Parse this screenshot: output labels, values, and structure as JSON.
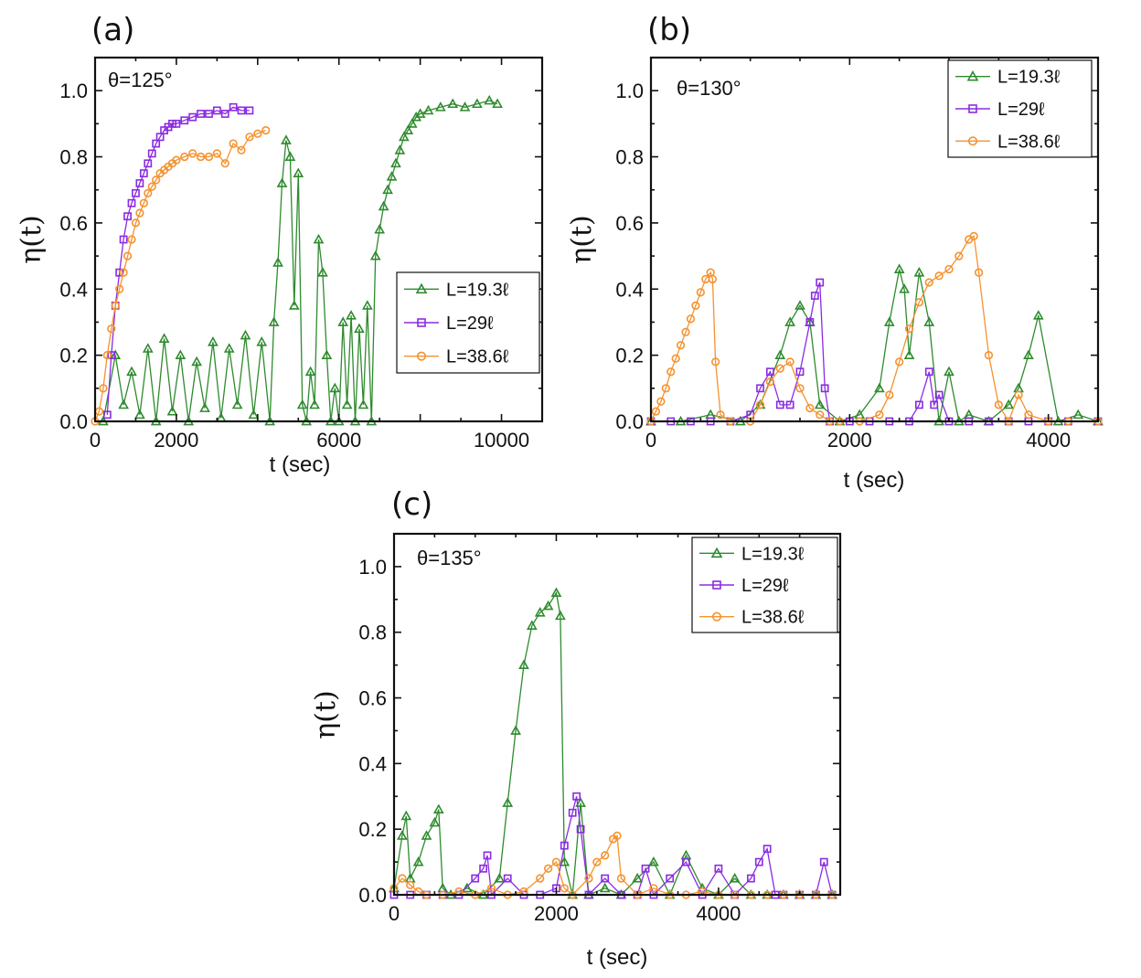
{
  "colors": {
    "green": "#2e8b2e",
    "purple": "#8a2be2",
    "orange": "#f5922f"
  },
  "chart_data": [
    {
      "type": "line",
      "panel_label": "(a)",
      "annotation": "θ=125°",
      "xlabel": "t (sec)",
      "ylabel": "η(t)",
      "xlim": [
        0,
        11000
      ],
      "ylim": [
        0,
        1.1
      ],
      "xticks": [
        0,
        2000,
        6000,
        10000
      ],
      "xtick_labels": [
        "0",
        "2000",
        "6000",
        "10000"
      ],
      "yticks": [
        0,
        0.2,
        0.4,
        0.6,
        0.8,
        1.0
      ],
      "ytick_labels": [
        "0.0",
        "0.2",
        "0.4",
        "0.6",
        "0.8",
        "1.0"
      ],
      "legend_position": "center-right",
      "series": [
        {
          "name": "L=19.3ℓ",
          "color": "#2e8b2e",
          "marker": "triangle",
          "x": [
            200,
            500,
            700,
            900,
            1100,
            1300,
            1500,
            1700,
            1900,
            2100,
            2300,
            2500,
            2700,
            2900,
            3100,
            3300,
            3500,
            3700,
            3900,
            4100,
            4300,
            4400,
            4500,
            4600,
            4700,
            4800,
            4900,
            5000,
            5100,
            5200,
            5300,
            5400,
            5500,
            5600,
            5700,
            5800,
            5900,
            6000,
            6100,
            6200,
            6300,
            6400,
            6500,
            6600,
            6700,
            6800,
            6900,
            7000,
            7100,
            7200,
            7300,
            7400,
            7500,
            7600,
            7700,
            7800,
            7900,
            8000,
            8200,
            8500,
            8800,
            9100,
            9400,
            9700,
            9900
          ],
          "y": [
            0.0,
            0.2,
            0.05,
            0.15,
            0.02,
            0.22,
            0.0,
            0.25,
            0.03,
            0.2,
            0.0,
            0.18,
            0.04,
            0.24,
            0.01,
            0.22,
            0.05,
            0.26,
            0.02,
            0.24,
            0.0,
            0.3,
            0.48,
            0.72,
            0.85,
            0.8,
            0.35,
            0.75,
            0.05,
            0.0,
            0.15,
            0.05,
            0.55,
            0.45,
            0.2,
            0.0,
            0.1,
            0.0,
            0.3,
            0.05,
            0.32,
            0.0,
            0.28,
            0.05,
            0.35,
            0.0,
            0.5,
            0.58,
            0.65,
            0.7,
            0.74,
            0.78,
            0.82,
            0.86,
            0.88,
            0.9,
            0.92,
            0.93,
            0.94,
            0.95,
            0.96,
            0.95,
            0.96,
            0.97,
            0.96
          ]
        },
        {
          "name": "L=29ℓ",
          "color": "#8a2be2",
          "marker": "square",
          "x": [
            300,
            400,
            500,
            600,
            700,
            800,
            900,
            1000,
            1100,
            1200,
            1300,
            1400,
            1500,
            1600,
            1700,
            1800,
            1900,
            2000,
            2200,
            2400,
            2600,
            2800,
            3000,
            3200,
            3400,
            3600,
            3800
          ],
          "y": [
            0.02,
            0.2,
            0.35,
            0.45,
            0.55,
            0.62,
            0.66,
            0.69,
            0.72,
            0.75,
            0.78,
            0.81,
            0.84,
            0.86,
            0.88,
            0.89,
            0.9,
            0.9,
            0.91,
            0.92,
            0.93,
            0.93,
            0.94,
            0.93,
            0.95,
            0.94,
            0.94
          ]
        },
        {
          "name": "L=38.6ℓ",
          "color": "#f5922f",
          "marker": "circle",
          "x": [
            0,
            100,
            200,
            300,
            400,
            500,
            600,
            700,
            800,
            900,
            1000,
            1100,
            1200,
            1300,
            1400,
            1500,
            1600,
            1700,
            1800,
            1900,
            2000,
            2200,
            2400,
            2600,
            2800,
            3000,
            3200,
            3400,
            3600,
            3800,
            4000,
            4200
          ],
          "y": [
            0.0,
            0.03,
            0.1,
            0.2,
            0.28,
            0.35,
            0.4,
            0.45,
            0.5,
            0.55,
            0.6,
            0.63,
            0.66,
            0.69,
            0.71,
            0.73,
            0.75,
            0.76,
            0.77,
            0.78,
            0.79,
            0.8,
            0.81,
            0.8,
            0.8,
            0.81,
            0.78,
            0.84,
            0.82,
            0.86,
            0.87,
            0.88
          ]
        }
      ]
    },
    {
      "type": "line",
      "panel_label": "(b)",
      "annotation": "θ=130°",
      "xlabel": "t (sec)",
      "ylabel": "η(t)",
      "xlim": [
        0,
        4500
      ],
      "ylim": [
        0,
        1.1
      ],
      "xticks": [
        0,
        2000,
        4000
      ],
      "xtick_labels": [
        "0",
        "2000",
        "4000"
      ],
      "yticks": [
        0,
        0.2,
        0.4,
        0.6,
        0.8,
        1.0
      ],
      "ytick_labels": [
        "0.0",
        "0.2",
        "0.4",
        "0.6",
        "0.8",
        "1.0"
      ],
      "legend_position": "top-right",
      "series": [
        {
          "name": "L=19.3ℓ",
          "color": "#2e8b2e",
          "marker": "triangle",
          "x": [
            0,
            300,
            600,
            900,
            1100,
            1300,
            1400,
            1500,
            1600,
            1700,
            1900,
            2100,
            2300,
            2400,
            2500,
            2550,
            2600,
            2700,
            2800,
            2900,
            3000,
            3100,
            3200,
            3400,
            3600,
            3700,
            3800,
            3900,
            4100,
            4300,
            4500
          ],
          "y": [
            0.0,
            0.0,
            0.02,
            0.0,
            0.05,
            0.2,
            0.3,
            0.35,
            0.3,
            0.05,
            0.0,
            0.02,
            0.1,
            0.3,
            0.46,
            0.4,
            0.2,
            0.45,
            0.3,
            0.0,
            0.15,
            0.0,
            0.02,
            0.0,
            0.05,
            0.1,
            0.2,
            0.32,
            0.0,
            0.02,
            0.0
          ]
        },
        {
          "name": "L=29ℓ",
          "color": "#8a2be2",
          "marker": "square",
          "x": [
            0,
            200,
            400,
            600,
            800,
            1000,
            1100,
            1200,
            1300,
            1400,
            1500,
            1600,
            1650,
            1700,
            1750,
            1800,
            2000,
            2200,
            2400,
            2600,
            2700,
            2800,
            2850,
            2900,
            3000,
            3200,
            3400,
            3600,
            3800,
            4000,
            4200,
            4500
          ],
          "y": [
            0.0,
            0.0,
            0.0,
            0.0,
            0.0,
            0.02,
            0.1,
            0.15,
            0.05,
            0.05,
            0.15,
            0.3,
            0.38,
            0.42,
            0.1,
            0.0,
            0.0,
            0.0,
            0.0,
            0.0,
            0.05,
            0.15,
            0.05,
            0.08,
            0.0,
            0.0,
            0.0,
            0.0,
            0.0,
            0.0,
            0.0,
            0.0
          ]
        },
        {
          "name": "L=38.6ℓ",
          "color": "#f5922f",
          "marker": "circle",
          "x": [
            0,
            50,
            100,
            150,
            200,
            250,
            300,
            350,
            400,
            450,
            500,
            550,
            600,
            620,
            650,
            700,
            800,
            1000,
            1100,
            1200,
            1300,
            1400,
            1500,
            1600,
            1700,
            1800,
            1900,
            2100,
            2300,
            2400,
            2500,
            2600,
            2700,
            2800,
            2900,
            3000,
            3100,
            3200,
            3250,
            3300,
            3400,
            3500,
            3600,
            3700,
            3800,
            4000,
            4200,
            4500
          ],
          "y": [
            0.0,
            0.03,
            0.06,
            0.1,
            0.15,
            0.19,
            0.23,
            0.27,
            0.31,
            0.35,
            0.39,
            0.43,
            0.45,
            0.43,
            0.18,
            0.02,
            0.0,
            0.0,
            0.05,
            0.12,
            0.16,
            0.18,
            0.1,
            0.04,
            0.02,
            0.0,
            0.0,
            0.0,
            0.02,
            0.08,
            0.18,
            0.28,
            0.36,
            0.42,
            0.44,
            0.46,
            0.5,
            0.55,
            0.56,
            0.45,
            0.2,
            0.05,
            0.0,
            0.08,
            0.02,
            0.0,
            0.0,
            0.0
          ]
        }
      ]
    },
    {
      "type": "line",
      "panel_label": "(c)",
      "annotation": "θ=135°",
      "xlabel": "t (sec)",
      "ylabel": "η(t)",
      "xlim": [
        0,
        5500
      ],
      "ylim": [
        0,
        1.1
      ],
      "xticks": [
        0,
        2000,
        4000
      ],
      "xtick_labels": [
        "0",
        "2000",
        "4000"
      ],
      "yticks": [
        0,
        0.2,
        0.4,
        0.6,
        0.8,
        1.0
      ],
      "ytick_labels": [
        "0.0",
        "0.2",
        "0.4",
        "0.6",
        "0.8",
        "1.0"
      ],
      "legend_position": "top-right",
      "series": [
        {
          "name": "L=19.3ℓ",
          "color": "#2e8b2e",
          "marker": "triangle",
          "x": [
            0,
            100,
            150,
            200,
            300,
            400,
            500,
            550,
            600,
            700,
            900,
            1100,
            1300,
            1400,
            1500,
            1600,
            1700,
            1800,
            1900,
            2000,
            2050,
            2100,
            2200,
            2300,
            2400,
            2600,
            2800,
            3000,
            3200,
            3400,
            3600,
            3800,
            4000,
            4200,
            4400,
            4600,
            4800,
            5000,
            5200,
            5400
          ],
          "y": [
            0.02,
            0.18,
            0.24,
            0.05,
            0.1,
            0.18,
            0.22,
            0.26,
            0.02,
            0.0,
            0.02,
            0.0,
            0.05,
            0.28,
            0.5,
            0.7,
            0.82,
            0.86,
            0.88,
            0.92,
            0.85,
            0.1,
            0.0,
            0.28,
            0.0,
            0.02,
            0.0,
            0.05,
            0.1,
            0.0,
            0.12,
            0.02,
            0.0,
            0.05,
            0.0,
            0.0,
            0.0,
            0.0,
            0.0,
            0.0
          ]
        },
        {
          "name": "L=29ℓ",
          "color": "#8a2be2",
          "marker": "square",
          "x": [
            0,
            200,
            400,
            600,
            800,
            1000,
            1100,
            1150,
            1200,
            1400,
            1600,
            1800,
            2000,
            2100,
            2200,
            2250,
            2300,
            2400,
            2600,
            2800,
            3000,
            3100,
            3200,
            3400,
            3600,
            3800,
            4000,
            4200,
            4400,
            4500,
            4600,
            4700,
            4800,
            5000,
            5200,
            5300,
            5400
          ],
          "y": [
            0.0,
            0.0,
            0.0,
            0.0,
            0.0,
            0.05,
            0.08,
            0.12,
            0.0,
            0.05,
            0.0,
            0.0,
            0.02,
            0.15,
            0.25,
            0.3,
            0.2,
            0.0,
            0.05,
            0.0,
            0.0,
            0.08,
            0.0,
            0.05,
            0.1,
            0.0,
            0.08,
            0.0,
            0.05,
            0.1,
            0.14,
            0.0,
            0.0,
            0.0,
            0.0,
            0.1,
            0.0
          ]
        },
        {
          "name": "L=38.6ℓ",
          "color": "#f5922f",
          "marker": "circle",
          "x": [
            0,
            100,
            200,
            300,
            400,
            600,
            800,
            1000,
            1200,
            1400,
            1600,
            1800,
            1900,
            2000,
            2100,
            2200,
            2400,
            2500,
            2600,
            2700,
            2750,
            2800,
            3000,
            3200,
            3400,
            3600,
            3800,
            4000,
            4200,
            4400,
            4600,
            4800,
            5000,
            5200,
            5400
          ],
          "y": [
            0.02,
            0.05,
            0.03,
            0.01,
            0.0,
            0.0,
            0.01,
            0.0,
            0.02,
            0.0,
            0.01,
            0.05,
            0.08,
            0.1,
            0.02,
            0.0,
            0.05,
            0.1,
            0.12,
            0.17,
            0.18,
            0.05,
            0.0,
            0.02,
            0.0,
            0.0,
            0.01,
            0.0,
            0.0,
            0.0,
            0.0,
            0.0,
            0.0,
            0.0,
            0.0
          ]
        }
      ]
    }
  ]
}
